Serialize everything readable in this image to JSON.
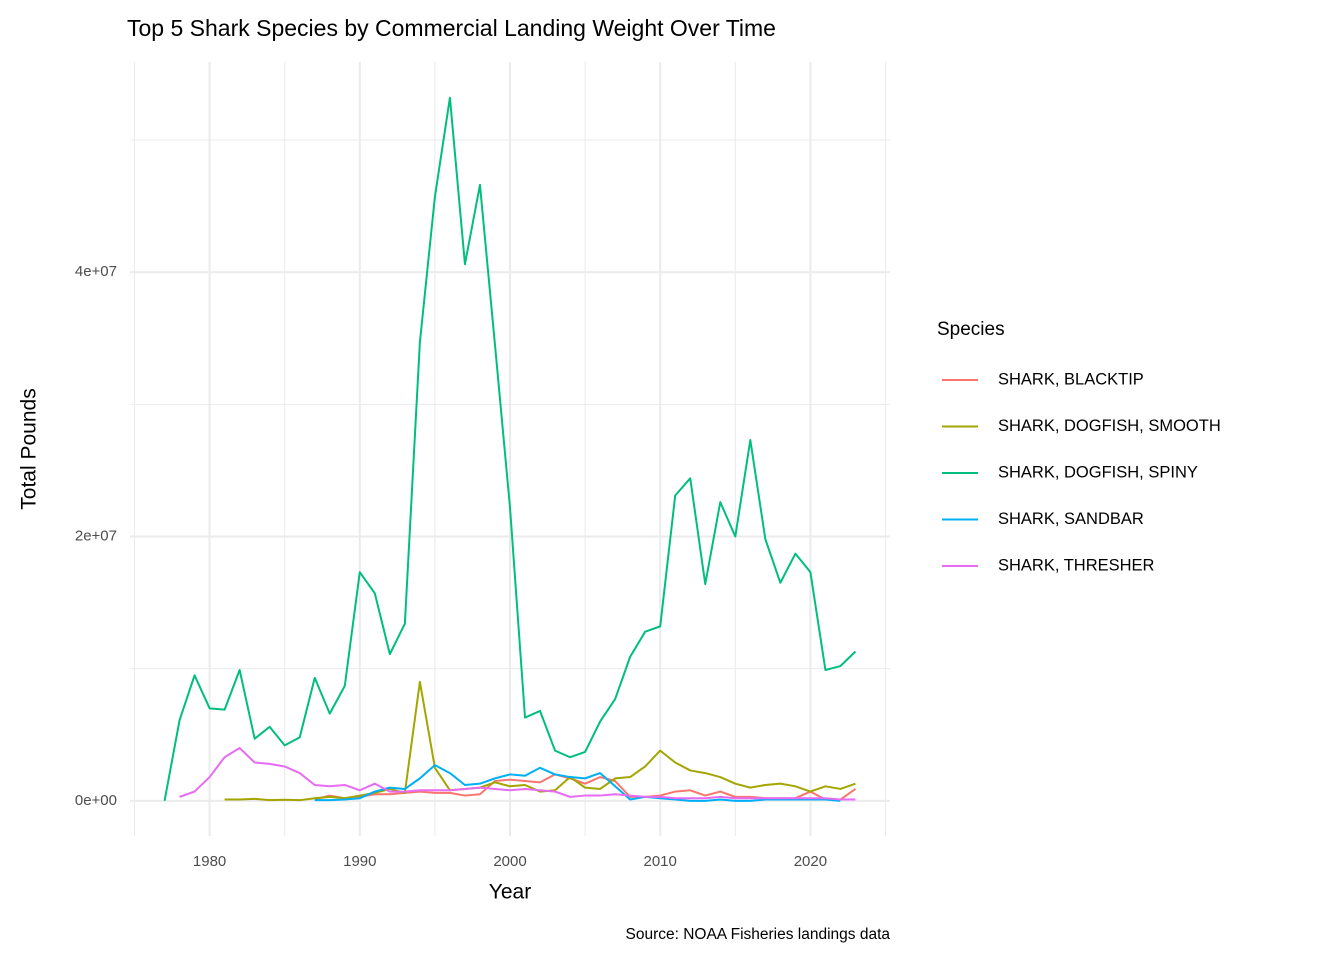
{
  "chart_data": {
    "type": "line",
    "title": "Top 5 Shark Species by Commercial Landing Weight Over Time",
    "x_label": "Year",
    "y_label": "Total Pounds",
    "legend_title": "Species",
    "caption": "Source: NOAA Fisheries landings data",
    "legend_position": "right",
    "grid": true,
    "x": [
      1977,
      1978,
      1979,
      1980,
      1981,
      1982,
      1983,
      1984,
      1985,
      1986,
      1987,
      1988,
      1989,
      1990,
      1991,
      1992,
      1993,
      1994,
      1995,
      1996,
      1997,
      1998,
      1999,
      2000,
      2001,
      2002,
      2003,
      2004,
      2005,
      2006,
      2007,
      2008,
      2009,
      2010,
      2011,
      2012,
      2013,
      2014,
      2015,
      2016,
      2017,
      2018,
      2019,
      2020,
      2021,
      2022,
      2023
    ],
    "xlim": [
      1974.7,
      2025.3
    ],
    "xticks": [
      1980,
      1990,
      2000,
      2010,
      2020
    ],
    "minor_xticks": [
      1975,
      1985,
      1995,
      2005,
      2015,
      2025
    ],
    "ylim": [
      -2660000,
      55900000
    ],
    "yticks": [
      {
        "value": 0,
        "label": "0e+00"
      },
      {
        "value": 20000000,
        "label": "2e+07"
      },
      {
        "value": 40000000,
        "label": "4e+07"
      }
    ],
    "minor_yticks": [
      10000000,
      30000000,
      50000000
    ],
    "series": [
      {
        "name": "SHARK, BLACKTIP",
        "color": "#F8766D",
        "values": [
          null,
          null,
          null,
          null,
          null,
          null,
          null,
          null,
          null,
          null,
          100000,
          400000,
          200000,
          300000,
          500000,
          500000,
          600000,
          700000,
          600000,
          600000,
          400000,
          500000,
          1500000,
          1600000,
          1500000,
          1400000,
          2000000,
          1700000,
          1300000,
          1800000,
          1500000,
          300000,
          300000,
          400000,
          700000,
          800000,
          400000,
          700000,
          300000,
          300000,
          200000,
          200000,
          200000,
          700000,
          100000,
          100000,
          900000
        ]
      },
      {
        "name": "SHARK, DOGFISH, SMOOTH",
        "color": "#A3A500",
        "values": [
          null,
          null,
          null,
          null,
          100000,
          100000,
          150000,
          50000,
          80000,
          50000,
          200000,
          300000,
          200000,
          400000,
          600000,
          900000,
          600000,
          9000000,
          2500000,
          800000,
          900000,
          1000000,
          1400000,
          1100000,
          1200000,
          700000,
          800000,
          1800000,
          1000000,
          900000,
          1700000,
          1800000,
          2600000,
          3800000,
          2900000,
          2300000,
          2100000,
          1800000,
          1300000,
          1000000,
          1200000,
          1300000,
          1100000,
          700000,
          1100000,
          900000,
          1300000
        ]
      },
      {
        "name": "SHARK, DOGFISH, SPINY",
        "color": "#00BF7D",
        "values": [
          0,
          6100000,
          9500000,
          7000000,
          6900000,
          9900000,
          4700000,
          5600000,
          4200000,
          4800000,
          9300000,
          6600000,
          8700000,
          17300000,
          15700000,
          11100000,
          13400000,
          34700000,
          45700000,
          53200000,
          40600000,
          46600000,
          34500000,
          22200000,
          6300000,
          6800000,
          3800000,
          3300000,
          3700000,
          6000000,
          7700000,
          10900000,
          12800000,
          13200000,
          23100000,
          24400000,
          16400000,
          22600000,
          20000000,
          27300000,
          19800000,
          16500000,
          18700000,
          17300000,
          9900000,
          10200000,
          11300000
        ]
      },
      {
        "name": "SHARK, SANDBAR",
        "color": "#00B0F6",
        "values": [
          null,
          null,
          null,
          null,
          null,
          null,
          null,
          null,
          null,
          null,
          50000,
          50000,
          100000,
          200000,
          700000,
          1000000,
          900000,
          1700000,
          2700000,
          2100000,
          1200000,
          1300000,
          1700000,
          2000000,
          1900000,
          2500000,
          2000000,
          1800000,
          1700000,
          2100000,
          1100000,
          100000,
          300000,
          200000,
          100000,
          0,
          0,
          100000,
          0,
          0,
          100000,
          100000,
          100000,
          100000,
          100000,
          0,
          null
        ]
      },
      {
        "name": "SHARK, THRESHER",
        "color": "#E76BF3",
        "values": [
          null,
          300000,
          700000,
          1800000,
          3300000,
          4000000,
          2900000,
          2800000,
          2600000,
          2100000,
          1200000,
          1100000,
          1200000,
          800000,
          1300000,
          700000,
          700000,
          800000,
          800000,
          800000,
          900000,
          1000000,
          900000,
          800000,
          900000,
          800000,
          700000,
          300000,
          400000,
          400000,
          500000,
          400000,
          300000,
          300000,
          200000,
          200000,
          200000,
          300000,
          200000,
          200000,
          200000,
          200000,
          200000,
          200000,
          200000,
          100000,
          100000
        ]
      }
    ]
  }
}
